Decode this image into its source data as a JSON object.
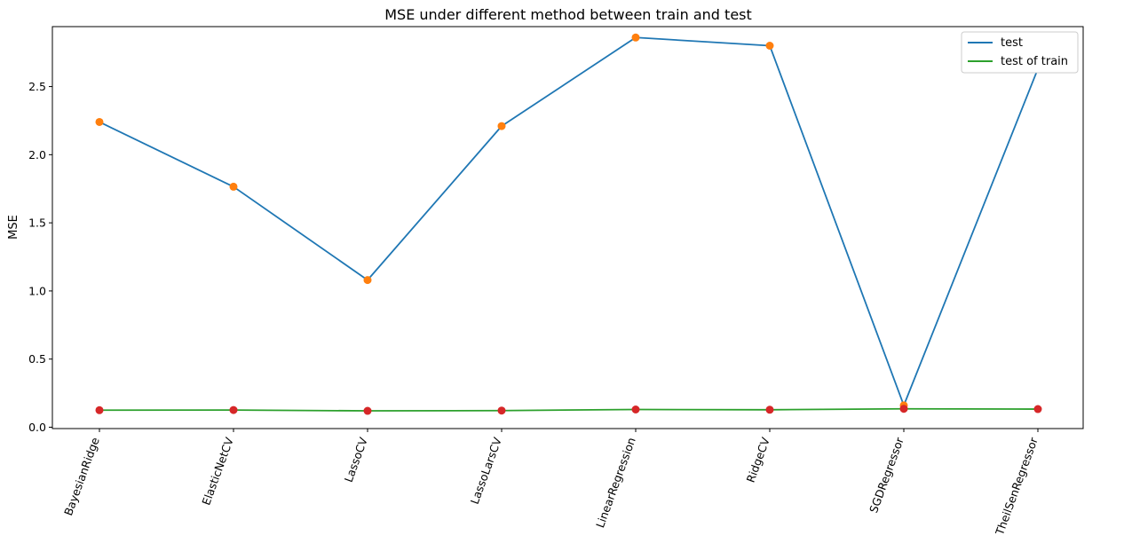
{
  "chart_data": {
    "type": "line",
    "title": "MSE under different method between train and test",
    "xlabel": "",
    "ylabel": "MSE",
    "categories": [
      "BayesianRidge",
      "ElasticNetCV",
      "LassoCV",
      "LassoLarsCV",
      "LinearRegression",
      "RidgeCV",
      "SGDRegressor",
      "TheilSenRegressor"
    ],
    "ylim": [
      -0.01,
      2.94
    ],
    "yticks": [
      0.0,
      0.5,
      1.0,
      1.5,
      2.0,
      2.5
    ],
    "ytick_labels": [
      "0.0",
      "0.5",
      "1.0",
      "1.5",
      "2.0",
      "2.5"
    ],
    "grid": false,
    "legend_position": "top-right",
    "series": [
      {
        "name": "test",
        "values": [
          2.24,
          1.765,
          1.08,
          2.21,
          2.86,
          2.8,
          0.16,
          2.63
        ],
        "line_color": "#1f77b4",
        "marker_color": "#ff7f0e"
      },
      {
        "name": "test of train",
        "values": [
          0.125,
          0.126,
          0.12,
          0.122,
          0.13,
          0.128,
          0.135,
          0.133
        ],
        "line_color": "#2ca02c",
        "marker_color": "#d62728"
      }
    ]
  }
}
